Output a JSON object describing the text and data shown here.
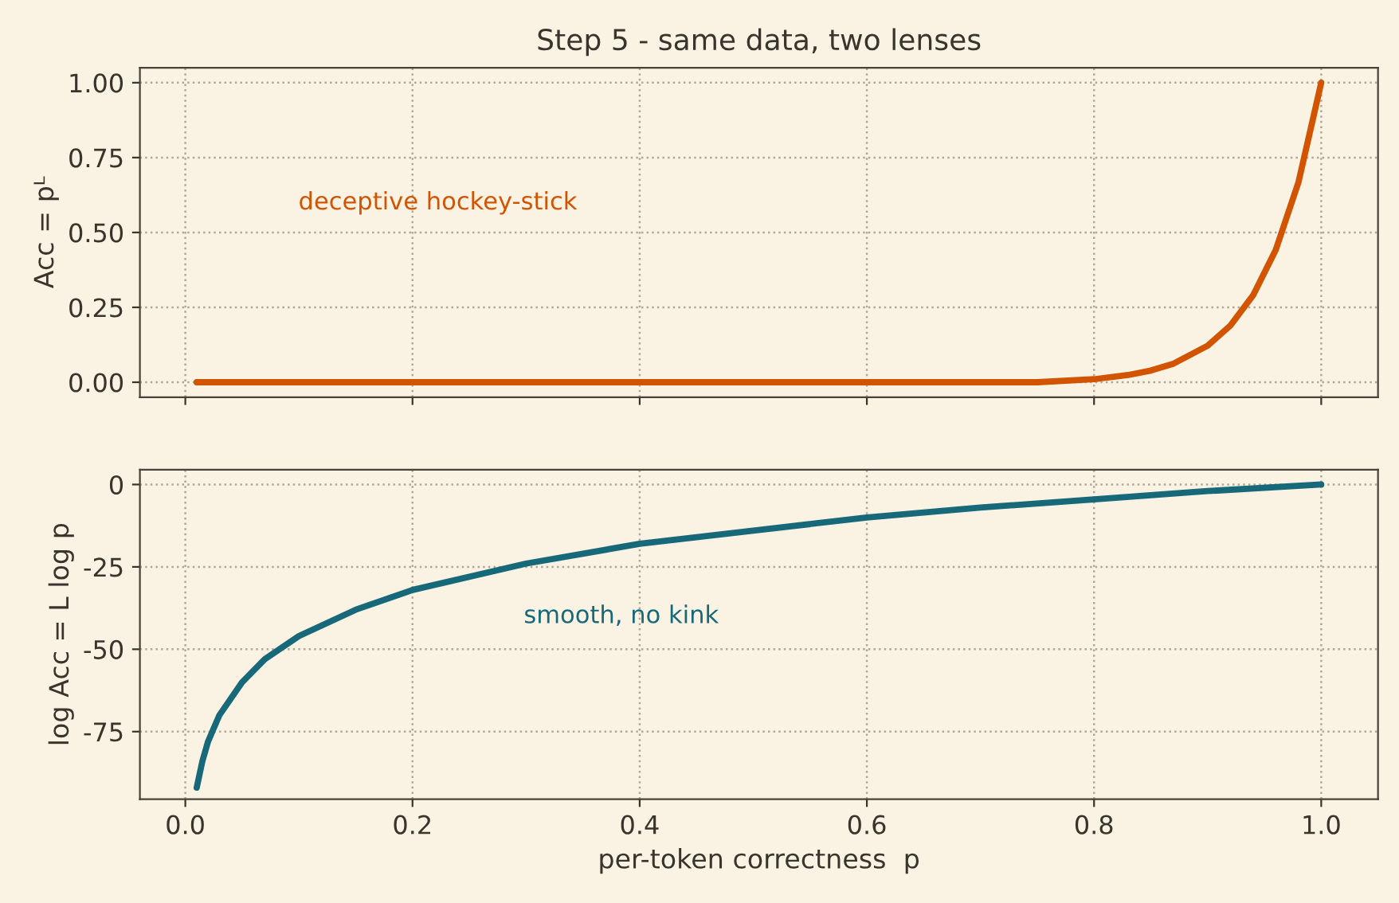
{
  "chart_data": [
    {
      "type": "line",
      "title": "Step 5 - same data, two lenses",
      "ylabel": "Acc = pᴸ",
      "series": [
        {
          "color": "#d35400",
          "x": [
            0.01,
            0.1,
            0.2,
            0.3,
            0.4,
            0.5,
            0.6,
            0.65,
            0.7,
            0.75,
            0.8,
            0.83,
            0.85,
            0.87,
            0.9,
            0.92,
            0.94,
            0.96,
            0.98,
            1.0
          ],
          "values": [
            0,
            0,
            0,
            0,
            0,
            0,
            0,
            0,
            0,
            0,
            0.01,
            0.024,
            0.039,
            0.062,
            0.122,
            0.189,
            0.29,
            0.442,
            0.668,
            1.0
          ]
        }
      ],
      "xlim": [
        -0.04,
        1.05
      ],
      "ylim": [
        -0.05,
        1.05
      ],
      "xticks": [
        {
          "value": 0.0,
          "label": null
        },
        {
          "value": 0.2,
          "label": null
        },
        {
          "value": 0.4,
          "label": null
        },
        {
          "value": 0.6,
          "label": null
        },
        {
          "value": 0.8,
          "label": null
        },
        {
          "value": 1.0,
          "label": null
        }
      ],
      "yticks": [
        {
          "value": 0,
          "label": "0.00"
        },
        {
          "value": 0.25,
          "label": "0.25"
        },
        {
          "value": 0.5,
          "label": "0.50"
        },
        {
          "value": 0.75,
          "label": "0.75"
        },
        {
          "value": 1.0,
          "label": "1.00"
        }
      ],
      "tick_labels": "y",
      "grid": true,
      "line_style": "solid",
      "annotations": [
        "deceptive hockey-stick"
      ]
    },
    {
      "type": "line",
      "xlabel": "per-token correctness  p",
      "ylabel": "log Acc = L log p",
      "series": [
        {
          "color": "#17697a",
          "x": [
            0.01,
            0.015,
            0.02,
            0.03,
            0.05,
            0.07,
            0.1,
            0.15,
            0.2,
            0.3,
            0.4,
            0.5,
            0.6,
            0.7,
            0.8,
            0.9,
            1.0
          ],
          "values": [
            -92,
            -84,
            -78,
            -70,
            -60,
            -53,
            -46,
            -38,
            -32,
            -24,
            -18,
            -14,
            -10,
            -7,
            -4.5,
            -2,
            0
          ]
        }
      ],
      "xlim": [
        -0.04,
        1.05
      ],
      "ylim": [
        -95.5,
        4.5
      ],
      "xticks": [
        {
          "value": 0.0,
          "label": "0.0"
        },
        {
          "value": 0.2,
          "label": "0.2"
        },
        {
          "value": 0.4,
          "label": "0.4"
        },
        {
          "value": 0.6,
          "label": "0.6"
        },
        {
          "value": 0.8,
          "label": "0.8"
        },
        {
          "value": 1.0,
          "label": "1.0"
        }
      ],
      "yticks": [
        -75,
        -50,
        -25,
        0
      ],
      "grid": true,
      "line_style": "solid",
      "annotations": [
        "smooth, no kink"
      ]
    }
  ]
}
